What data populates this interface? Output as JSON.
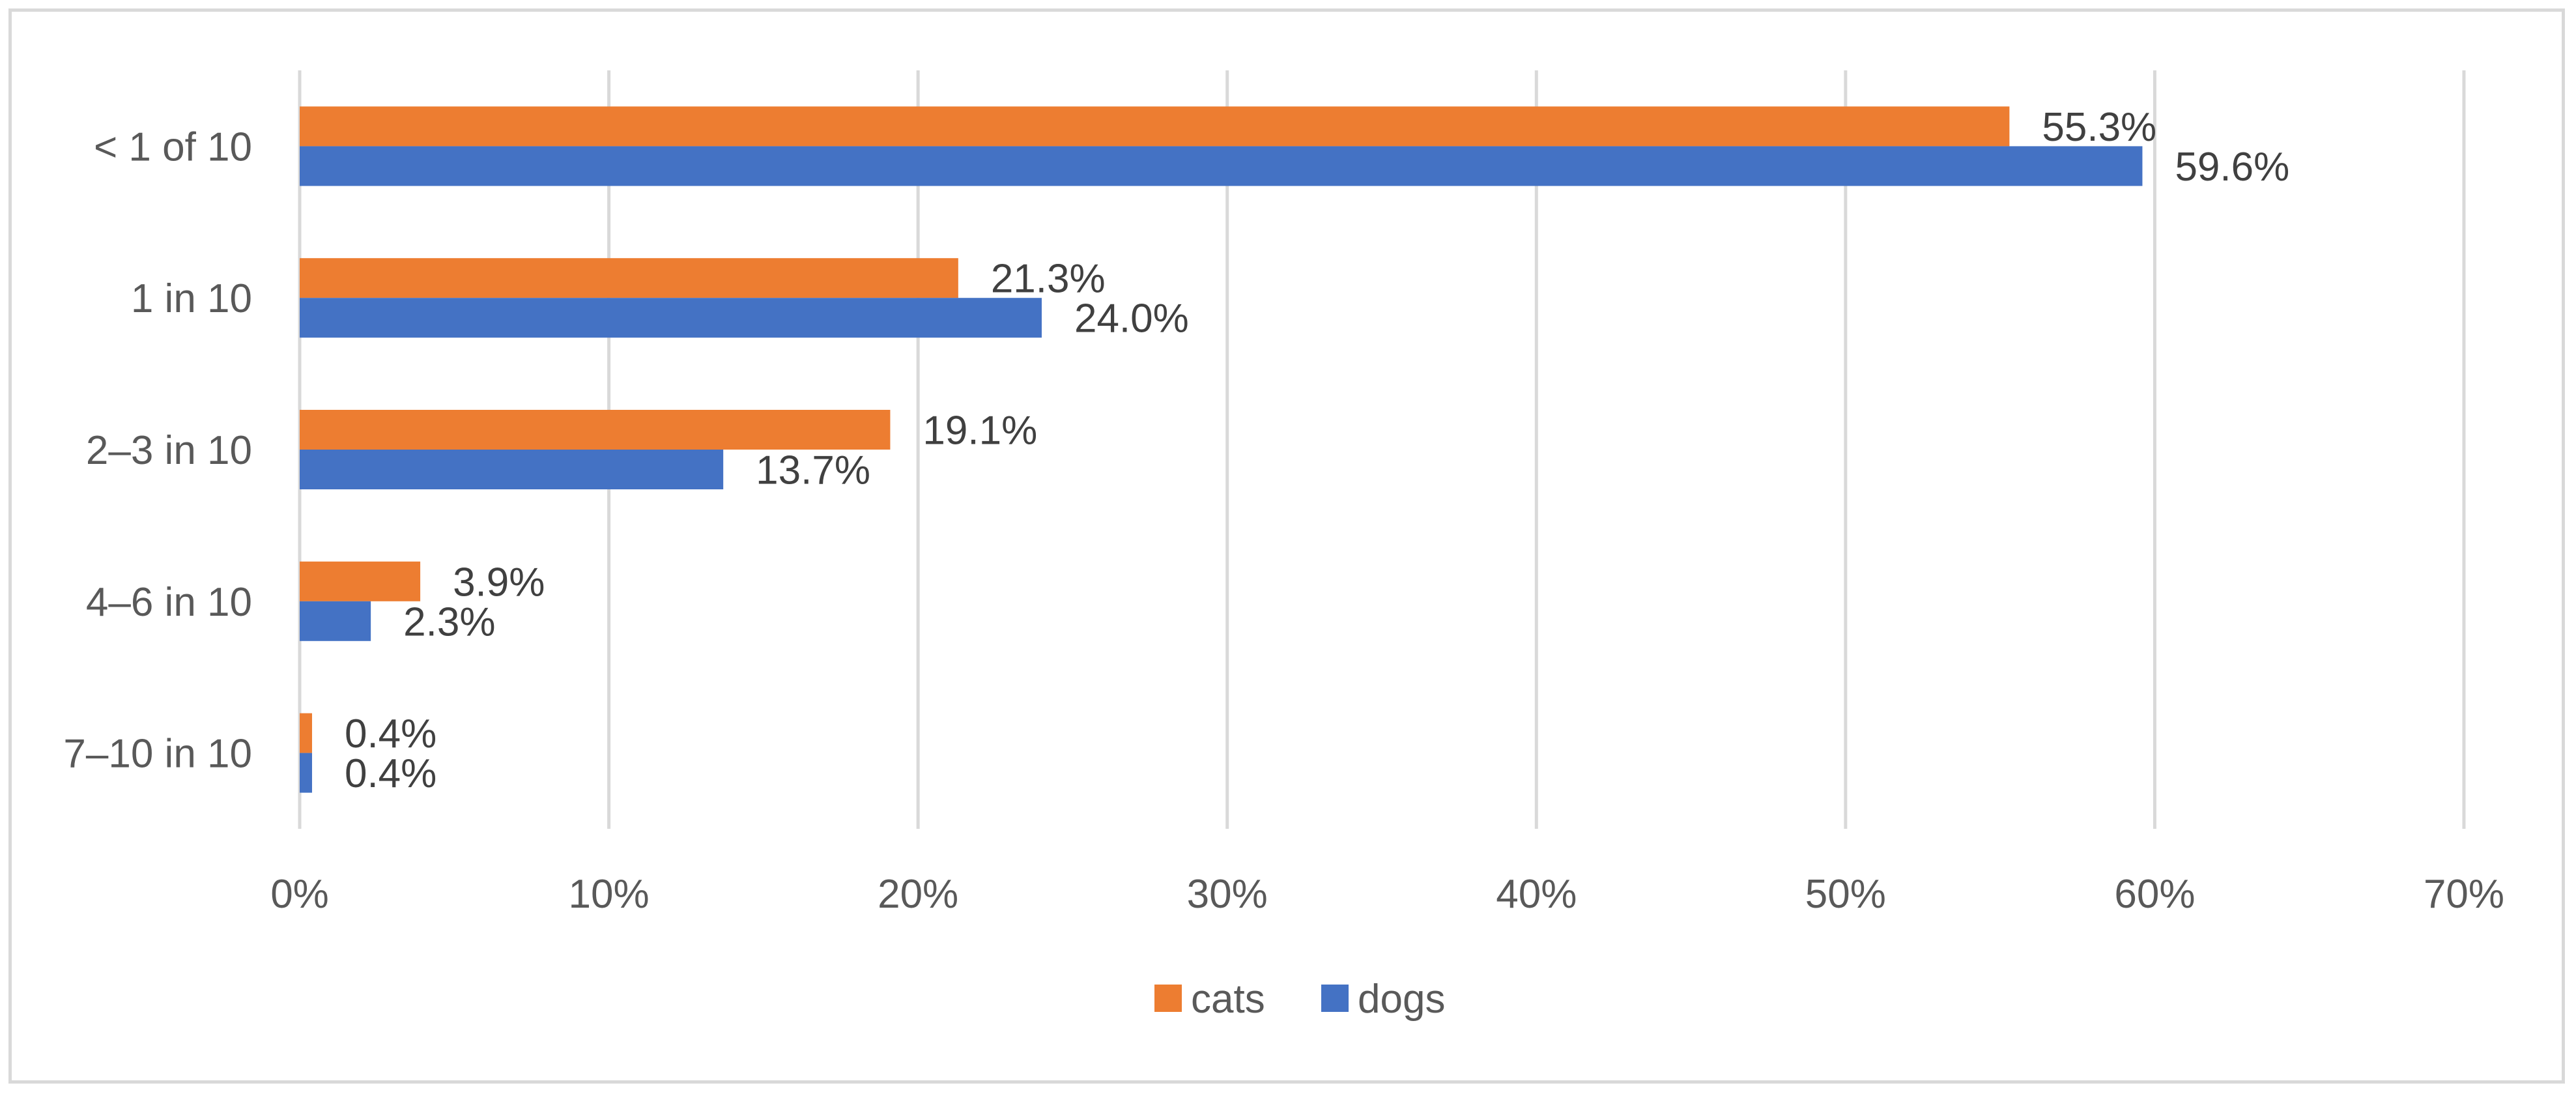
{
  "colors": {
    "cats": "#ED7D31",
    "dogs": "#4472C4",
    "grid": "#d9d9d9",
    "text": "#595959"
  },
  "chart_data": {
    "type": "bar",
    "orientation": "horizontal",
    "title": "",
    "xlabel": "",
    "ylabel": "",
    "categories": [
      "< 1 of 10",
      "1 in 10",
      "2–3 in 10",
      "4–6 in 10",
      "7–10 in 10"
    ],
    "series": [
      {
        "name": "cats",
        "color": "#ED7D31",
        "values": [
          55.3,
          21.3,
          19.1,
          3.9,
          0.4
        ],
        "labels": [
          "55.3%",
          "21.3%",
          "19.1%",
          "3.9%",
          "0.4%"
        ]
      },
      {
        "name": "dogs",
        "color": "#4472C4",
        "values": [
          59.6,
          24.0,
          13.7,
          2.3,
          0.4
        ],
        "labels": [
          "59.6%",
          "24.0%",
          "13.7%",
          "2.3%",
          "0.4%"
        ]
      }
    ],
    "xlim": [
      0,
      70
    ],
    "xticks": [
      0,
      10,
      20,
      30,
      40,
      50,
      60,
      70
    ],
    "xtick_labels": [
      "0%",
      "10%",
      "20%",
      "30%",
      "40%",
      "50%",
      "60%",
      "70%"
    ],
    "grid": "vertical",
    "legend": {
      "position": "bottom",
      "entries": [
        "cats",
        "dogs"
      ]
    }
  }
}
